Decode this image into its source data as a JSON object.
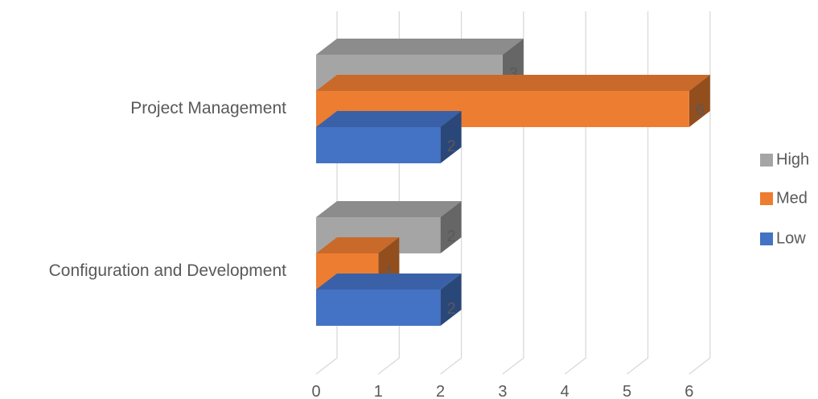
{
  "chart_data": {
    "type": "bar",
    "orientation": "horizontal",
    "three_d": true,
    "categories": [
      "Project Management",
      "Configuration and Development"
    ],
    "series": [
      {
        "name": "High",
        "values": [
          3,
          2
        ],
        "color": "#a5a5a5"
      },
      {
        "name": "Med",
        "values": [
          6,
          1
        ],
        "color": "#ed7d31"
      },
      {
        "name": "Low",
        "values": [
          2,
          2
        ],
        "color": "#4472c4"
      }
    ],
    "xlim": [
      0,
      6
    ],
    "x_ticks": [
      "0",
      "1",
      "2",
      "3",
      "4",
      "5",
      "6"
    ],
    "grid": true,
    "data_labels": true,
    "legend_position": "right",
    "title": "",
    "xlabel": "",
    "ylabel": ""
  }
}
